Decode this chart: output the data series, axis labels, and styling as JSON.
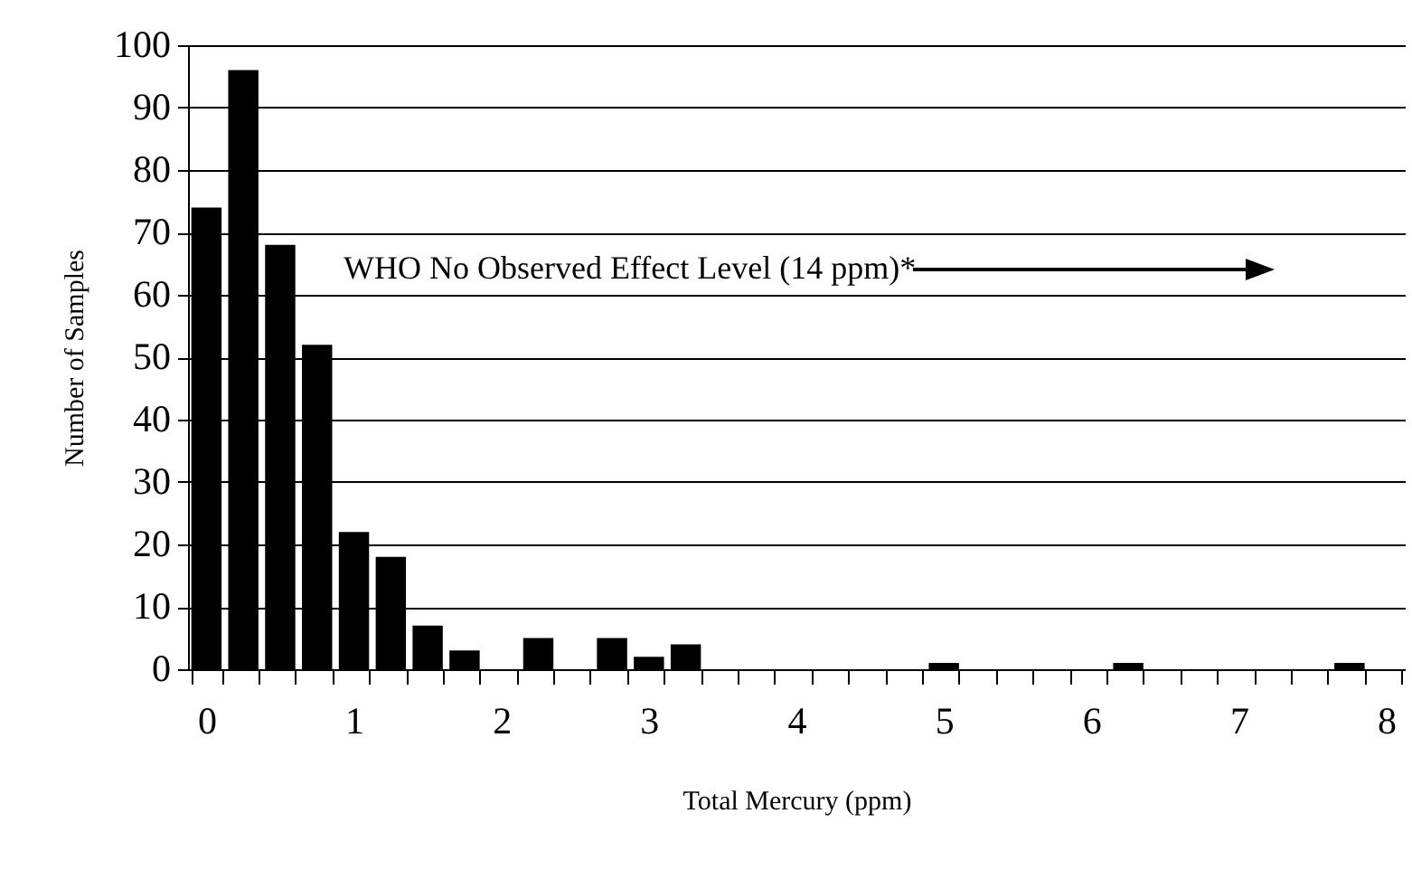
{
  "chart_data": {
    "type": "bar",
    "xlabel": "Total Mercury (ppm)",
    "ylabel": "Number of Samples",
    "annotations": [
      "WHO No Observed Effect Level (14 ppm)*"
    ],
    "categories": [
      "0",
      null,
      null,
      null,
      "1",
      null,
      null,
      null,
      "2",
      null,
      null,
      null,
      "3",
      null,
      null,
      null,
      "4",
      null,
      null,
      null,
      "5",
      null,
      null,
      null,
      "6",
      null,
      null,
      null,
      "7",
      null,
      null,
      null,
      "8"
    ],
    "values": [
      74,
      96,
      68,
      52,
      22,
      18,
      7,
      3,
      0,
      5,
      0,
      5,
      2,
      4,
      0,
      0,
      0,
      0,
      0,
      0,
      1,
      0,
      0,
      0,
      0,
      1,
      0,
      0,
      0,
      0,
      0,
      1,
      0
    ],
    "color": "#000000",
    "ylim": [
      0,
      100
    ],
    "yticks": [
      0,
      10,
      20,
      30,
      40,
      50,
      60,
      70,
      80,
      90,
      100
    ],
    "grid": "y"
  }
}
